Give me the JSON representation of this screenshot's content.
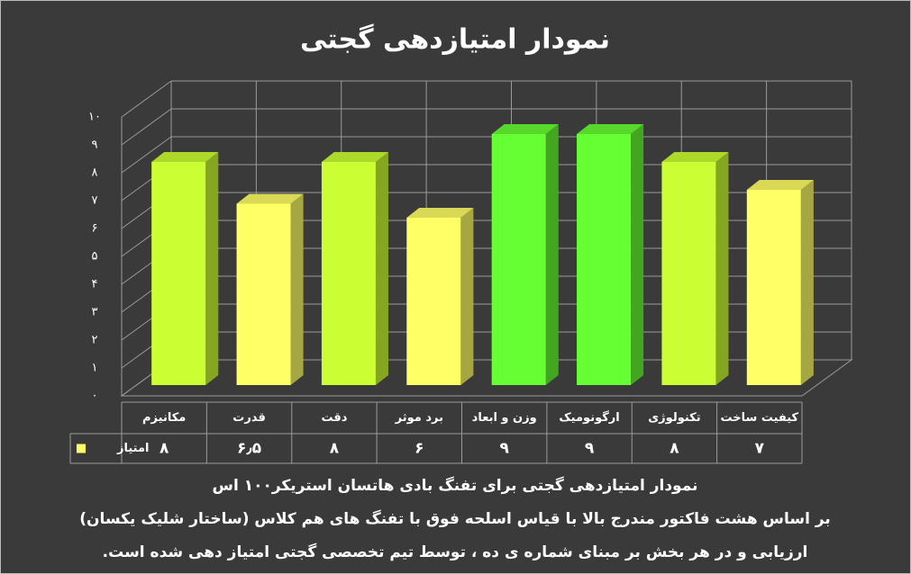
{
  "chart_data": {
    "type": "bar",
    "title": "نمودار امتیازدهی گجتی",
    "categories": [
      "مکانیزم",
      "قدرت",
      "دقت",
      "برد موثر",
      "وزن و ابعاد",
      "ارگونومیک",
      "تکنولوژی",
      "کیفیت ساخت"
    ],
    "series": [
      {
        "name": "امتیاز",
        "color": "#ffff66",
        "values": [
          8,
          6.5,
          8,
          6,
          9,
          9,
          8,
          7
        ],
        "value_labels": [
          "۸",
          "۶٫۵",
          "۸",
          "۶",
          "۹",
          "۹",
          "۸",
          "۷"
        ],
        "colors": [
          "#ccff33",
          "#ffff66",
          "#ccff33",
          "#ffff66",
          "#66ff33",
          "#66ff33",
          "#ccff33",
          "#ffff66"
        ]
      }
    ],
    "ylim": [
      0,
      10
    ],
    "yticks": [
      {
        "value": 0,
        "label": "۰"
      },
      {
        "value": 1,
        "label": "۱"
      },
      {
        "value": 2,
        "label": "۲"
      },
      {
        "value": 3,
        "label": "۳"
      },
      {
        "value": 4,
        "label": "۴"
      },
      {
        "value": 5,
        "label": "۵"
      },
      {
        "value": 6,
        "label": "۶"
      },
      {
        "value": 7,
        "label": "۷"
      },
      {
        "value": 8,
        "label": "۸"
      },
      {
        "value": 9,
        "label": "۹"
      },
      {
        "value": 10,
        "label": "۱۰"
      }
    ],
    "grid": true,
    "notes": [
      "نمودار امتیازدهی گجتی برای تفنگ بادی هاتسان استریکر۱۰۰ اس",
      "بر اساس هشت فاکتور مندرج بالا با قیاس اسلحه فوق با تفنگ های هم کلاس (ساختار شلیک یکسان)",
      "ارزیابی و در هر بخش بر مبنای شماره ی ده ، توسط تیم تخصصی گجتی امتیاز دهی شده است."
    ]
  }
}
